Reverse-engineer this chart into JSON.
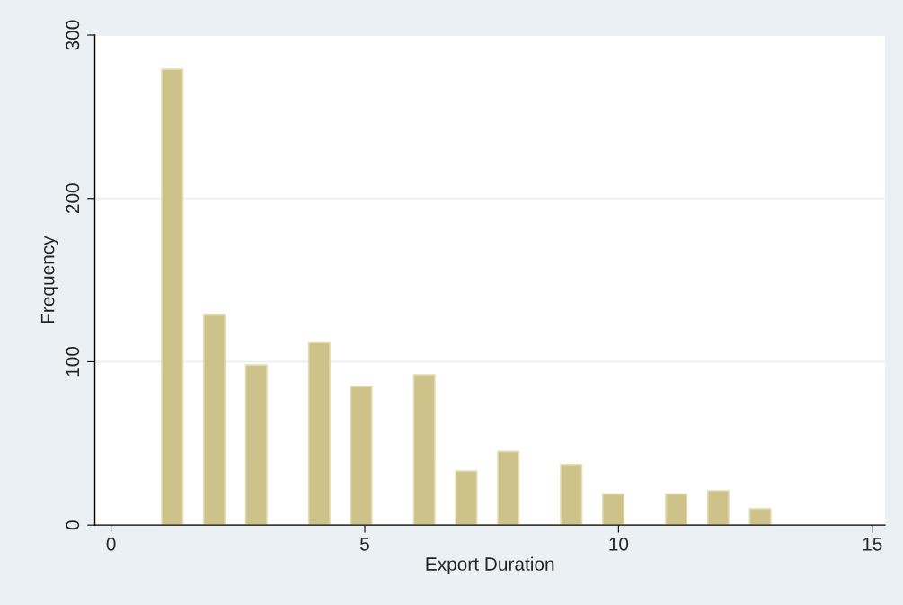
{
  "chart_data": {
    "type": "histogram",
    "xlabel": "Export Duration",
    "ylabel": "Frequency",
    "bins": [
      1.0,
      1.414,
      1.828,
      2.241,
      2.655,
      3.069,
      3.483,
      3.897,
      4.31,
      4.724,
      5.138,
      5.552,
      5.966,
      6.379,
      6.793,
      7.207,
      7.621,
      8.034,
      8.448,
      8.862,
      9.276,
      9.69,
      10.103,
      10.517,
      10.931,
      11.345,
      11.759,
      12.172,
      12.586,
      13.0
    ],
    "values": [
      279,
      0,
      129,
      0,
      98,
      0,
      0,
      112,
      0,
      85,
      0,
      0,
      92,
      0,
      33,
      0,
      45,
      0,
      0,
      37,
      0,
      19,
      0,
      0,
      19,
      0,
      21,
      0,
      10
    ],
    "color": "#cdc28a",
    "xlim": [
      -0.32,
      15.25
    ],
    "ylim": [
      0,
      300
    ],
    "xticks": [
      0,
      5,
      10,
      15
    ],
    "yticks": [
      0,
      100,
      200,
      300
    ],
    "grid": "y"
  }
}
